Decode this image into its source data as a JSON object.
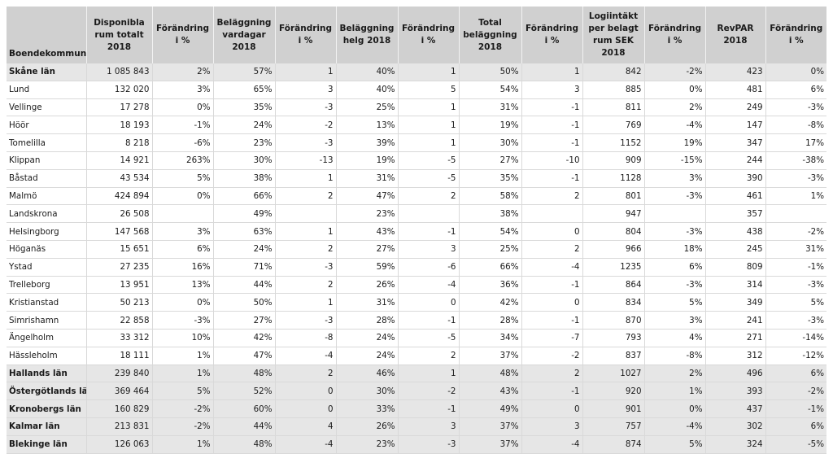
{
  "headers": [
    "Boendekommun",
    "Disponibla rum totalt 2018",
    "Förändring i %",
    "Beläggning vardagar 2018",
    "Förändring i %",
    "Beläggning helg 2018",
    "Förändring i %",
    "Total beläggning 2018",
    "Förändring i %",
    "Logiintäkt per belagt rum SEK 2018",
    "Förändring i %",
    "RevPAR 2018",
    "Förändring i %"
  ],
  "rows": [
    {
      "style": "region",
      "cells": [
        "Skåne län",
        "1 085 843",
        "2%",
        "57%",
        "1",
        "40%",
        "1",
        "50%",
        "1",
        "842",
        "-2%",
        "423",
        "0%"
      ]
    },
    {
      "style": "plain",
      "cells": [
        "Lund",
        "132 020",
        "3%",
        "65%",
        "3",
        "40%",
        "5",
        "54%",
        "3",
        "885",
        "0%",
        "481",
        "6%"
      ]
    },
    {
      "style": "plain",
      "cells": [
        "Vellinge",
        "17 278",
        "0%",
        "35%",
        "-3",
        "25%",
        "1",
        "31%",
        "-1",
        "811",
        "2%",
        "249",
        "-3%"
      ]
    },
    {
      "style": "plain",
      "cells": [
        "Höör",
        "18 193",
        "-1%",
        "24%",
        "-2",
        "13%",
        "1",
        "19%",
        "-1",
        "769",
        "-4%",
        "147",
        "-8%"
      ]
    },
    {
      "style": "plain",
      "cells": [
        "Tomelilla",
        "8 218",
        "-6%",
        "23%",
        "-3",
        "39%",
        "1",
        "30%",
        "-1",
        "1152",
        "19%",
        "347",
        "17%"
      ]
    },
    {
      "style": "plain",
      "cells": [
        "Klippan",
        "14 921",
        "263%",
        "30%",
        "-13",
        "19%",
        "-5",
        "27%",
        "-10",
        "909",
        "-15%",
        "244",
        "-38%"
      ]
    },
    {
      "style": "plain",
      "cells": [
        "Båstad",
        "43 534",
        "5%",
        "38%",
        "1",
        "31%",
        "-5",
        "35%",
        "-1",
        "1128",
        "3%",
        "390",
        "-3%"
      ]
    },
    {
      "style": "plain",
      "cells": [
        "Malmö",
        "424 894",
        "0%",
        "66%",
        "2",
        "47%",
        "2",
        "58%",
        "2",
        "801",
        "-3%",
        "461",
        "1%"
      ]
    },
    {
      "style": "plain",
      "cells": [
        "Landskrona",
        "26 508",
        "",
        "49%",
        "",
        "23%",
        "",
        "38%",
        "",
        "947",
        "",
        "357",
        ""
      ]
    },
    {
      "style": "plain",
      "cells": [
        "Helsingborg",
        "147 568",
        "3%",
        "63%",
        "1",
        "43%",
        "-1",
        "54%",
        "0",
        "804",
        "-3%",
        "438",
        "-2%"
      ]
    },
    {
      "style": "plain",
      "cells": [
        "Höganäs",
        "15 651",
        "6%",
        "24%",
        "2",
        "27%",
        "3",
        "25%",
        "2",
        "966",
        "18%",
        "245",
        "31%"
      ]
    },
    {
      "style": "plain",
      "cells": [
        "Ystad",
        "27 235",
        "16%",
        "71%",
        "-3",
        "59%",
        "-6",
        "66%",
        "-4",
        "1235",
        "6%",
        "809",
        "-1%"
      ]
    },
    {
      "style": "plain",
      "cells": [
        "Trelleborg",
        "13 951",
        "13%",
        "44%",
        "2",
        "26%",
        "-4",
        "36%",
        "-1",
        "864",
        "-3%",
        "314",
        "-3%"
      ]
    },
    {
      "style": "plain",
      "cells": [
        "Kristianstad",
        "50 213",
        "0%",
        "50%",
        "1",
        "31%",
        "0",
        "42%",
        "0",
        "834",
        "5%",
        "349",
        "5%"
      ]
    },
    {
      "style": "plain",
      "cells": [
        "Simrishamn",
        "22 858",
        "-3%",
        "27%",
        "-3",
        "28%",
        "-1",
        "28%",
        "-1",
        "870",
        "3%",
        "241",
        "-3%"
      ]
    },
    {
      "style": "plain",
      "cells": [
        "Ängelholm",
        "33 312",
        "10%",
        "42%",
        "-8",
        "24%",
        "-5",
        "34%",
        "-7",
        "793",
        "4%",
        "271",
        "-14%"
      ]
    },
    {
      "style": "plain",
      "cells": [
        "Hässleholm",
        "18 111",
        "1%",
        "47%",
        "-4",
        "24%",
        "2",
        "37%",
        "-2",
        "837",
        "-8%",
        "312",
        "-12%"
      ]
    },
    {
      "style": "bold",
      "cells": [
        "Hallands län",
        "239 840",
        "1%",
        "48%",
        "2",
        "46%",
        "1",
        "48%",
        "2",
        "1027",
        "2%",
        "496",
        "6%"
      ]
    },
    {
      "style": "bold",
      "cells": [
        "Östergötlands län",
        "369 464",
        "5%",
        "52%",
        "0",
        "30%",
        "-2",
        "43%",
        "-1",
        "920",
        "1%",
        "393",
        "-2%"
      ]
    },
    {
      "style": "bold",
      "cells": [
        "Kronobergs län",
        "160 829",
        "-2%",
        "60%",
        "0",
        "33%",
        "-1",
        "49%",
        "0",
        "901",
        "0%",
        "437",
        "-1%"
      ]
    },
    {
      "style": "bold",
      "cells": [
        "Kalmar län",
        "213 831",
        "-2%",
        "44%",
        "4",
        "26%",
        "3",
        "37%",
        "3",
        "757",
        "-4%",
        "302",
        "6%"
      ]
    },
    {
      "style": "bold",
      "cells": [
        "Blekinge län",
        "126 063",
        "1%",
        "48%",
        "-4",
        "23%",
        "-3",
        "37%",
        "-4",
        "874",
        "5%",
        "324",
        "-5%"
      ]
    }
  ]
}
